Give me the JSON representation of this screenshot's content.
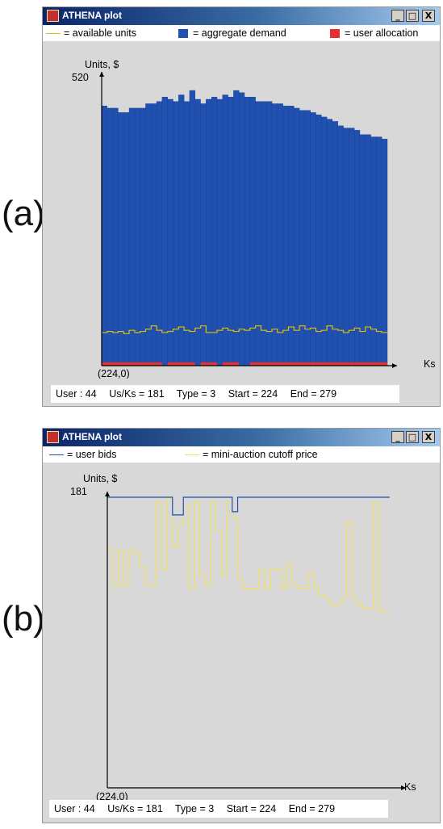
{
  "panels": [
    {
      "label": "(a)",
      "window": {
        "title": "ATHENA plot",
        "buttons": {
          "minimize": "_",
          "maximize": "□",
          "close": "X"
        },
        "icon": "app-icon"
      },
      "legend": [
        {
          "text": "= available units",
          "color": "#e0c000",
          "swatch": "line"
        },
        {
          "text": "= aggregate demand",
          "color": "#2050b0",
          "swatch": "box"
        },
        {
          "text": "= user allocation",
          "color": "#e83030",
          "swatch": "box"
        }
      ],
      "chart_data": {
        "type": "bar",
        "ylabel": "Units, $",
        "xlabel": "Ks",
        "y_max_label": "520",
        "origin_label": "(224,0)",
        "ylim": [
          0,
          520
        ],
        "x_start": 224,
        "x_end": 279,
        "series": [
          {
            "name": "aggregate demand",
            "color": "#2050b0",
            "values": [
              470,
              466,
              466,
              458,
              458,
              466,
              466,
              466,
              474,
              474,
              478,
              486,
              482,
              478,
              490,
              478,
              498,
              482,
              474,
              482,
              486,
              482,
              490,
              486,
              498,
              494,
              486,
              486,
              478,
              478,
              478,
              474,
              474,
              470,
              470,
              466,
              462,
              462,
              458,
              454,
              450,
              446,
              442,
              434,
              430,
              430,
              426,
              418,
              418,
              414,
              414,
              410
            ]
          },
          {
            "name": "available units",
            "color": "#e0c000",
            "values": [
              60,
              62,
              60,
              62,
              58,
              64,
              60,
              62,
              66,
              72,
              64,
              60,
              62,
              66,
              70,
              64,
              62,
              68,
              72,
              60,
              60,
              64,
              68,
              64,
              62,
              66,
              64,
              68,
              72,
              64,
              62,
              66,
              60,
              64,
              70,
              64,
              72,
              66,
              68,
              62,
              64,
              72,
              66,
              64,
              60,
              64,
              68,
              62,
              70,
              66,
              62,
              60
            ]
          },
          {
            "name": "user allocation",
            "color": "#e83030",
            "values": [
              6,
              6,
              6,
              6,
              6,
              6,
              6,
              6,
              6,
              6,
              6,
              0,
              6,
              6,
              6,
              6,
              6,
              0,
              6,
              6,
              6,
              0,
              6,
              6,
              6,
              0,
              0,
              6,
              6,
              6,
              6,
              6,
              6,
              6,
              6,
              6,
              6,
              6,
              6,
              6,
              6,
              6,
              6,
              6,
              6,
              6,
              6,
              6,
              6,
              6,
              6,
              6
            ]
          }
        ]
      },
      "status": {
        "user": "User : 44",
        "us_ks": "Us/Ks = 181",
        "type": "Type = 3",
        "start": "Start = 224",
        "end": "End = 279"
      }
    },
    {
      "label": "(b)",
      "window": {
        "title": "ATHENA plot",
        "buttons": {
          "minimize": "_",
          "maximize": "□",
          "close": "X"
        },
        "icon": "app-icon"
      },
      "legend": [
        {
          "text": "= user bids",
          "color": "#2050b0",
          "swatch": "line"
        },
        {
          "text": "= mini-auction cutoff price",
          "color": "#f0e060",
          "swatch": "line"
        }
      ],
      "chart_data": {
        "type": "line",
        "ylabel": "Units, $",
        "xlabel": "Ks",
        "y_max_label": "181",
        "origin_label": "(224,0)",
        "ylim": [
          0,
          181
        ],
        "x_start": 224,
        "x_end": 279,
        "series": [
          {
            "name": "user bids",
            "color": "#2050b0",
            "values": [
              181,
              181,
              181,
              181,
              181,
              181,
              181,
              181,
              181,
              181,
              181,
              181,
              170,
              170,
              181,
              181,
              181,
              181,
              181,
              181,
              181,
              181,
              181,
              172,
              181,
              181,
              181,
              181,
              181,
              181,
              181,
              181,
              181,
              181,
              181,
              181,
              181,
              181,
              181,
              181,
              181,
              181,
              181,
              181,
              181,
              181,
              181,
              181,
              181,
              181,
              181,
              181
            ]
          },
          {
            "name": "mini-auction cutoff price",
            "color": "#f0e060",
            "values": [
              148,
              126,
              148,
              126,
              148,
              146,
              138,
              126,
              126,
              178,
              136,
              180,
              150,
              164,
              176,
              124,
              178,
              132,
              126,
              178,
              160,
              132,
              178,
              168,
              130,
              124,
              124,
              124,
              136,
              124,
              136,
              136,
              124,
              140,
              126,
              124,
              124,
              134,
              124,
              120,
              118,
              114,
              114,
              118,
              166,
              118,
              114,
              112,
              112,
              178,
              110,
              110
            ]
          }
        ]
      },
      "status": {
        "user": "User : 44",
        "us_ks": "Us/Ks = 181",
        "type": "Type = 3",
        "start": "Start = 224",
        "end": "End = 279"
      }
    }
  ]
}
